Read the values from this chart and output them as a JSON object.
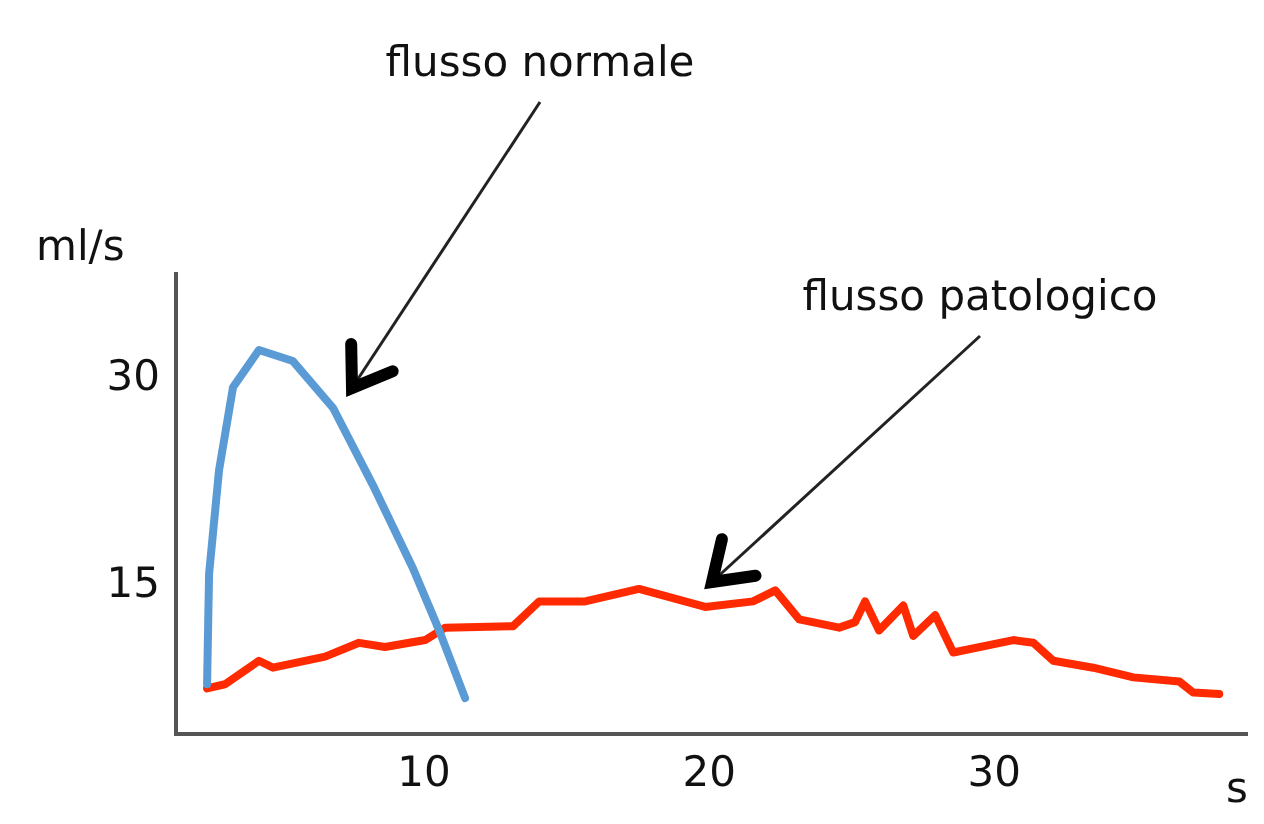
{
  "chart_data": {
    "type": "line",
    "xlabel": "s",
    "ylabel": "ml/s",
    "xlim": [
      1.3,
      38.9
    ],
    "ylim": [
      4.3,
      37.6
    ],
    "xticks": [
      10,
      20,
      30
    ],
    "yticks": [
      15,
      30
    ],
    "grid": false,
    "legend": false,
    "marker": "none",
    "line_style": "solid",
    "series": [
      {
        "color": "#5b9bd5",
        "x": [
          2.39,
          2.46,
          2.81,
          3.3,
          4.21,
          5.4,
          6.81,
          8.21,
          9.61,
          10.53,
          11.44
        ],
        "values": [
          7.9,
          15.9,
          23.4,
          29.4,
          32.1,
          31.3,
          27.9,
          22.3,
          16.3,
          11.8,
          6.9
        ]
      },
      {
        "color": "#ff2a00",
        "x": [
          2.39,
          3.02,
          4.21,
          4.7,
          6.53,
          7.72,
          8.63,
          10.04,
          10.74,
          13.12,
          14.04,
          15.65,
          17.54,
          19.86,
          21.54,
          22.32,
          23.16,
          24.56,
          25.12,
          25.47,
          25.96,
          26.81,
          27.16,
          27.93,
          28.56,
          30.67,
          31.37,
          32.07,
          33.47,
          34.88,
          36.49,
          36.98,
          37.89
        ],
        "values": [
          7.6,
          7.9,
          9.6,
          9.1,
          9.9,
          10.9,
          10.6,
          11.1,
          12.0,
          12.1,
          13.9,
          13.9,
          14.8,
          13.5,
          13.9,
          14.7,
          12.6,
          12.0,
          12.4,
          13.9,
          11.8,
          13.6,
          11.4,
          12.9,
          10.2,
          11.1,
          10.9,
          9.6,
          9.1,
          8.4,
          8.1,
          7.3,
          7.2
        ]
      }
    ],
    "annotations": [
      "flusso normale",
      "flusso patologico"
    ]
  }
}
